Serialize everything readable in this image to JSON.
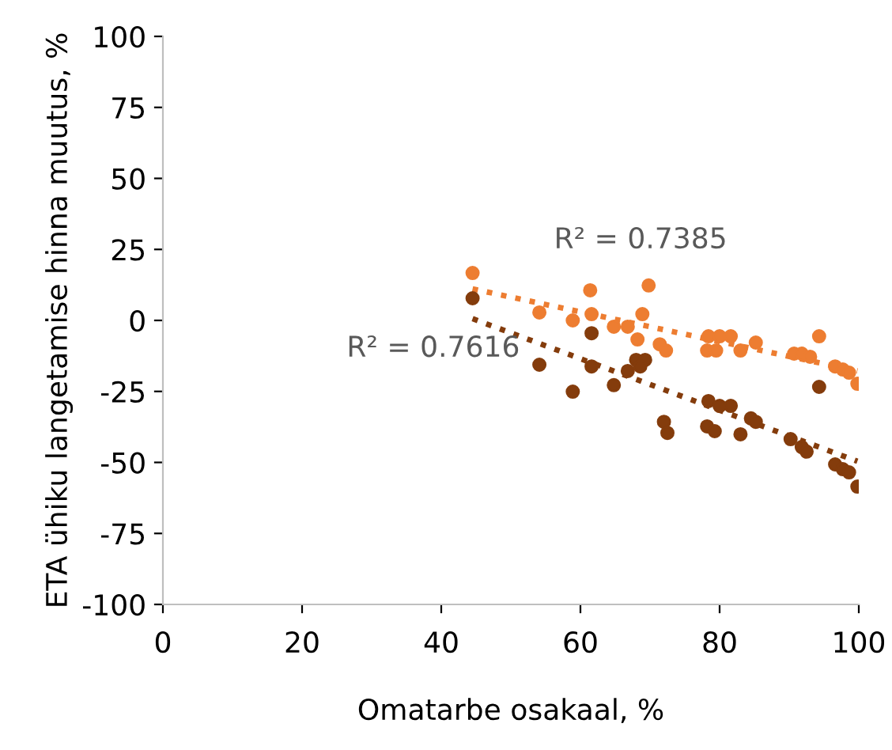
{
  "chart_data": {
    "type": "scatter",
    "xlabel": "Omatarbe osakaal, %",
    "ylabel": "ETA ühiku langetamise hinna muutus, %",
    "xlim": [
      0,
      100
    ],
    "xticks": [
      0,
      20,
      40,
      60,
      80,
      100
    ],
    "ylim": [
      -100,
      100
    ],
    "yticks": [
      -100,
      -75,
      -50,
      -25,
      0,
      25,
      50,
      75,
      100
    ],
    "grid": false,
    "legend": false,
    "marker": "circle",
    "series": [
      {
        "color": "#ed7d31",
        "x": [
          44.5,
          54.1,
          58.9,
          61.4,
          61.6,
          64.8,
          66.8,
          68.9,
          69.8,
          68.2,
          71.4,
          72.3,
          78.4,
          80,
          81.6,
          78.2,
          79.5,
          83,
          85.2,
          94.3,
          90.7,
          91.8,
          93,
          96.6,
          97.7,
          98.6,
          99.8
        ],
        "values": [
          16.7,
          2.8,
          0,
          10.6,
          2.2,
          -2.2,
          -2.2,
          2.2,
          12.3,
          -6.7,
          -8.4,
          -10.6,
          -5.6,
          -5.6,
          -5.6,
          -10.6,
          -10.6,
          -10.6,
          -7.8,
          -5.6,
          -11.7,
          -11.7,
          -12.8,
          -16.2,
          -17.3,
          -18.4,
          -22.3
        ]
      },
      {
        "color": "#843c0c",
        "x": [
          44.5,
          54.1,
          58.9,
          61.6,
          61.6,
          64.8,
          66.8,
          68,
          69.3,
          68.6,
          94.3,
          78.4,
          80,
          81.6,
          72,
          72.5,
          78.2,
          79.3,
          83,
          84.5,
          85.2,
          90.2,
          91.8,
          92.5,
          96.6,
          97.7,
          98.6,
          99.8
        ],
        "values": [
          7.8,
          -15.6,
          -25.1,
          -4.5,
          -16.2,
          -22.8,
          -17.8,
          -13.9,
          -13.9,
          -16.2,
          -23.4,
          -28.4,
          -30.1,
          -30.1,
          -35.7,
          -39.6,
          -37.3,
          -39,
          -40.1,
          -34.5,
          -35.7,
          -41.8,
          -44.6,
          -46.2,
          -50.7,
          -52.4,
          -53.5,
          -58.5
        ]
      },
      {
        "type": "line",
        "color": "#ed7d31",
        "line_style": "dotted",
        "marker": "none",
        "x": [
          44.5,
          99.8
        ],
        "values": [
          11.1,
          -17.8
        ]
      },
      {
        "type": "line",
        "color": "#843c0c",
        "line_style": "dotted",
        "marker": "none",
        "x": [
          44.5,
          99.8
        ],
        "values": [
          0.6,
          -49.6
        ]
      }
    ],
    "annotations": [
      "R² = 0.7385",
      "R² = 0.7616"
    ]
  }
}
